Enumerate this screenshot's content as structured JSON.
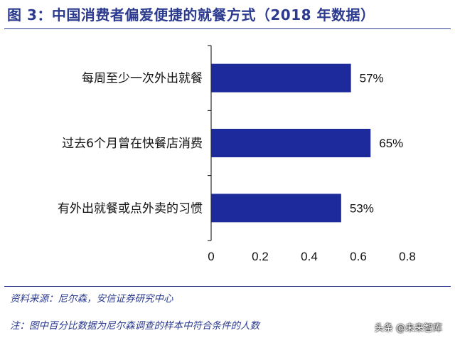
{
  "header": {
    "title": "图 3：中国消费者偏爱便捷的就餐方式（2018 年数据）"
  },
  "chart_data": {
    "type": "bar",
    "orientation": "horizontal",
    "title": "",
    "xlabel": "",
    "ylabel": "",
    "categories": [
      "每周至少一次外出就餐",
      "过去6个月曾在快餐店消费",
      "有外出就餐或点外卖的习惯"
    ],
    "values": [
      0.57,
      0.65,
      0.53
    ],
    "value_labels": [
      "57%",
      "65%",
      "53%"
    ],
    "xlim": [
      0,
      0.8
    ],
    "ticks": [
      0,
      0.2,
      0.4,
      0.6,
      0.8
    ],
    "tick_labels": [
      "0",
      "0.2",
      "0.4",
      "0.6",
      "0.8"
    ],
    "grid": false,
    "bar_color": "#1c2a9c"
  },
  "footer": {
    "source": "资料来源：尼尔森，安信证券研究中心",
    "note": "注：图中百分比数据为尼尔森调查的样本中符合条件的人数",
    "watermark": "头条 @未来智库"
  },
  "colors": {
    "accent": "#2b3a8f",
    "bar": "#1c2a9c"
  }
}
